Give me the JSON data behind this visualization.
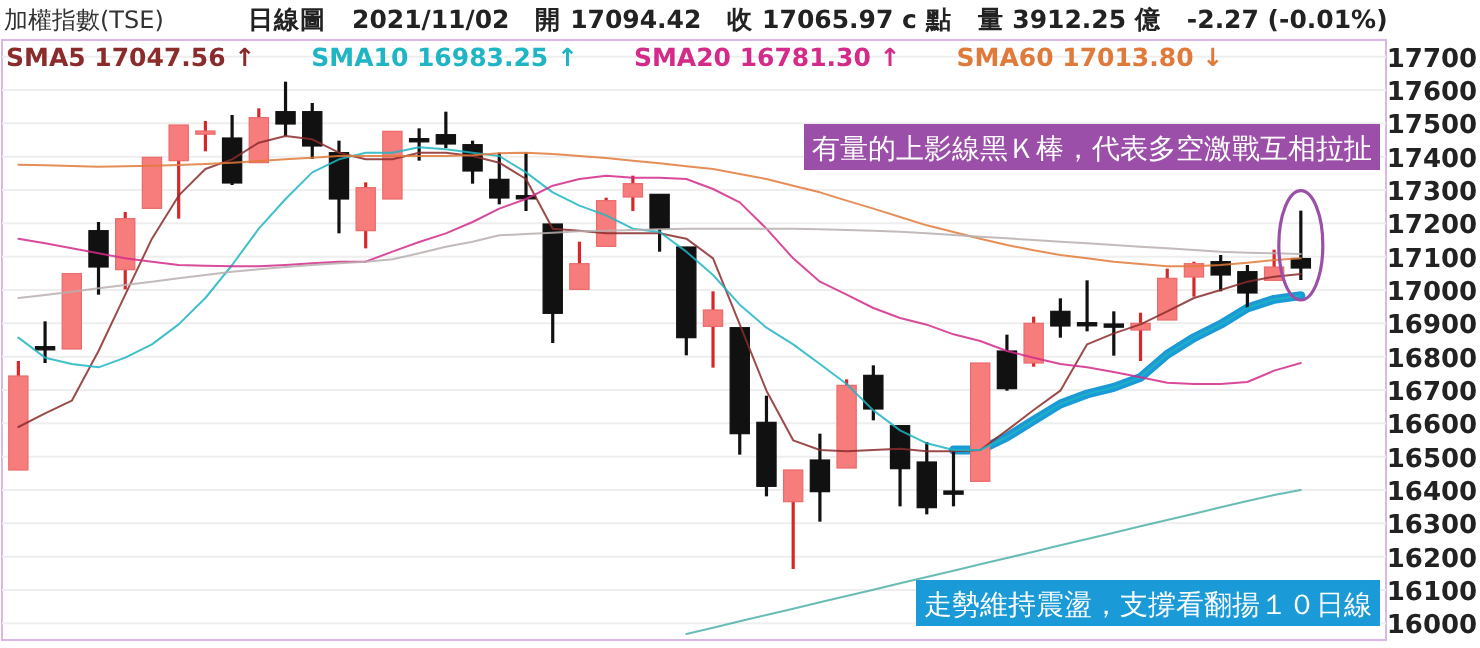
{
  "chart_data": {
    "type": "candlestick",
    "title": "加權指數(TSE)",
    "subtitle": "日線圖　2021/11/02　開 17094.42　收 17065.97 c 點　量 3912.25 億　-2.27 (-0.01%)",
    "categories": [
      null,
      null,
      null,
      null,
      null,
      null,
      null,
      null,
      null,
      null,
      null,
      null,
      null,
      null,
      null,
      null,
      null,
      null,
      null,
      null,
      null,
      null,
      null,
      null,
      null,
      null,
      null,
      null,
      null,
      null,
      null,
      null,
      null,
      null,
      null,
      null,
      null,
      null,
      null,
      null,
      null,
      null,
      null,
      null,
      null,
      null,
      null,
      null,
      null
    ],
    "ohlc": [
      [
        16460,
        16787,
        16460,
        16742
      ],
      [
        16830,
        16906,
        16781,
        16825
      ],
      [
        16823,
        17049,
        16823,
        17049
      ],
      [
        17178,
        17204,
        16986,
        17069
      ],
      [
        17061,
        17234,
        17002,
        17214
      ],
      [
        17245,
        17398,
        17245,
        17398
      ],
      [
        17388,
        17495,
        17214,
        17495
      ],
      [
        17473,
        17507,
        17416,
        17477
      ],
      [
        17456,
        17525,
        17315,
        17321
      ],
      [
        17382,
        17545,
        17382,
        17517
      ],
      [
        17535,
        17625,
        17462,
        17498
      ],
      [
        17535,
        17561,
        17393,
        17432
      ],
      [
        17412,
        17448,
        17170,
        17273
      ],
      [
        17178,
        17323,
        17125,
        17307
      ],
      [
        17273,
        17476,
        17273,
        17476
      ],
      [
        17454,
        17485,
        17388,
        17450
      ],
      [
        17466,
        17535,
        17426,
        17438
      ],
      [
        17436,
        17448,
        17319,
        17357
      ],
      [
        17332,
        17412,
        17257,
        17276
      ],
      [
        17283,
        17412,
        17237,
        17279
      ],
      [
        17198,
        17198,
        16841,
        16930
      ],
      [
        17002,
        17145,
        17002,
        17079
      ],
      [
        17131,
        17277,
        17131,
        17268
      ],
      [
        17279,
        17343,
        17237,
        17319
      ],
      [
        17287,
        17287,
        17115,
        17184
      ],
      [
        17129,
        17129,
        16804,
        16857
      ],
      [
        16891,
        16996,
        16767,
        16940
      ],
      [
        16887,
        16887,
        16506,
        16569
      ],
      [
        16603,
        16683,
        16381,
        16411
      ],
      [
        16365,
        16460,
        16163,
        16460
      ],
      [
        16490,
        16569,
        16305,
        16395
      ],
      [
        16466,
        16732,
        16466,
        16714
      ],
      [
        16744,
        16774,
        16609,
        16643
      ],
      [
        16593,
        16593,
        16351,
        16464
      ],
      [
        16484,
        16544,
        16327,
        16347
      ],
      [
        16397,
        16520,
        16351,
        16393
      ],
      [
        16426,
        16781,
        16426,
        16781
      ],
      [
        16817,
        16866,
        16698,
        16704
      ],
      [
        16781,
        16920,
        16770,
        16900
      ],
      [
        16936,
        16975,
        16857,
        16892
      ],
      [
        16902,
        17029,
        16876,
        16898
      ],
      [
        16898,
        16936,
        16803,
        16894
      ],
      [
        16880,
        16932,
        16787,
        16900
      ],
      [
        16910,
        17064,
        16910,
        17035
      ],
      [
        17039,
        17085,
        16980,
        17079
      ],
      [
        17085,
        17105,
        16996,
        17045
      ],
      [
        17055,
        17075,
        16946,
        16991
      ],
      [
        17029,
        17121,
        17029,
        17069
      ],
      [
        17094.42,
        17238,
        17030,
        17065.97
      ]
    ],
    "series": [
      {
        "name": "SMA5 17047.56 ↑",
        "type": "line",
        "color": "#8b2c2c",
        "values": [
          16589,
          16630,
          16668,
          16817,
          16986,
          17154,
          17283,
          17363,
          17392,
          17442,
          17462,
          17452,
          17412,
          17392,
          17392,
          17412,
          17412,
          17402,
          17382,
          17333,
          17184,
          17178,
          17170,
          17170,
          17170,
          17154,
          17095,
          16897,
          16698,
          16549,
          16520,
          16516,
          16520,
          16524,
          16516,
          16516,
          16520,
          16579,
          16640,
          16698,
          16837,
          16870,
          16897,
          16936,
          16976,
          17000,
          17025,
          17040,
          17048
        ]
      },
      {
        "name": "SMA10 16983.25 ↑",
        "type": "line",
        "color": "#1fb5c4",
        "values": [
          16857,
          16797,
          16778,
          16768,
          16797,
          16837,
          16897,
          16976,
          17075,
          17184,
          17273,
          17353,
          17392,
          17412,
          17412,
          17428,
          17422,
          17412,
          17402,
          17353,
          17293,
          17253,
          17224,
          17184,
          17174,
          17115,
          17045,
          16956,
          16887,
          16837,
          16778,
          16718,
          16639,
          16579,
          16540,
          16520,
          16520,
          16559,
          16609,
          16658,
          16688,
          16708,
          16738,
          16807,
          16857,
          16897,
          16946,
          16972,
          16983
        ]
      },
      {
        "name": "SMA20 16781.30 ↑",
        "type": "line",
        "color": "#d42a8a",
        "values": [
          17154,
          17140,
          17125,
          17110,
          17095,
          17085,
          17075,
          17073,
          17071,
          17071,
          17075,
          17080,
          17085,
          17085,
          17115,
          17144,
          17170,
          17204,
          17244,
          17273,
          17313,
          17333,
          17343,
          17337,
          17337,
          17333,
          17303,
          17263,
          17184,
          17095,
          17025,
          16986,
          16946,
          16916,
          16896,
          16867,
          16847,
          16817,
          16797,
          16778,
          16768,
          16754,
          16738,
          16722,
          16718,
          16718,
          16724,
          16758,
          16781
        ]
      },
      {
        "name": "SMA60 17013.80 ↓",
        "type": "line",
        "color": "#e07a3a",
        "values": [
          17376,
          17374,
          17372,
          17370,
          17371,
          17373,
          17375,
          17378,
          17382,
          17387,
          17392,
          17397,
          17402,
          17402,
          17402,
          17402,
          17402,
          17404,
          17410,
          17412,
          17408,
          17402,
          17396,
          17388,
          17380,
          17371,
          17363,
          17348,
          17333,
          17313,
          17293,
          17268,
          17244,
          17219,
          17194,
          17174,
          17154,
          17135,
          17119,
          17105,
          17095,
          17085,
          17078,
          17071,
          17071,
          17075,
          17082,
          17090,
          17095
        ]
      },
      {
        "type": "line",
        "color": "#b8aeae",
        "values": [
          16976,
          16985,
          16995,
          17005,
          17015,
          17025,
          17035,
          17045,
          17055,
          17062,
          17069,
          17075,
          17080,
          17085,
          17092,
          17110,
          17130,
          17145,
          17164,
          17168,
          17172,
          17176,
          17178,
          17180,
          17182,
          17184,
          17184,
          17184,
          17184,
          17184,
          17182,
          17180,
          17178,
          17175,
          17170,
          17165,
          17160,
          17155,
          17150,
          17145,
          17140,
          17135,
          17130,
          17125,
          17120,
          17115,
          17112,
          17110,
          17108
        ]
      },
      {
        "type": "line",
        "color": "#4fb0a8",
        "values": [
          null,
          null,
          null,
          null,
          null,
          null,
          null,
          null,
          null,
          null,
          null,
          null,
          null,
          null,
          null,
          null,
          null,
          null,
          null,
          null,
          null,
          null,
          null,
          null,
          null,
          15968,
          15987,
          16006,
          16025,
          16044,
          16063,
          16082,
          16101,
          16120,
          16139,
          16158,
          16177,
          16196,
          16215,
          16234,
          16253,
          16272,
          16291,
          16310,
          16329,
          16348,
          16367,
          16385,
          16400
        ]
      },
      {
        "type": "line",
        "color": "#1a9ad6",
        "values": [
          null,
          null,
          null,
          null,
          null,
          null,
          null,
          null,
          null,
          null,
          null,
          null,
          null,
          null,
          null,
          null,
          null,
          null,
          null,
          null,
          null,
          null,
          null,
          null,
          null,
          null,
          null,
          null,
          null,
          null,
          null,
          null,
          null,
          null,
          null,
          16520,
          16520,
          16559,
          16609,
          16658,
          16688,
          16708,
          16738,
          16807,
          16857,
          16897,
          16946,
          16972,
          16983
        ]
      }
    ],
    "ylim": [
      15950,
      17750
    ],
    "yticks": [
      16000,
      16100,
      16200,
      16300,
      16400,
      16500,
      16600,
      16700,
      16800,
      16900,
      17000,
      17100,
      17200,
      17300,
      17400,
      17500,
      17600,
      17700
    ],
    "grid": "y",
    "legend": "top left",
    "marker": "none",
    "annotations": [
      "有量的上影線黑Ｋ棒，代表多空激戰互相拉扯",
      "走勢維持震盪，支撐看翻揚１０日線"
    ]
  }
}
